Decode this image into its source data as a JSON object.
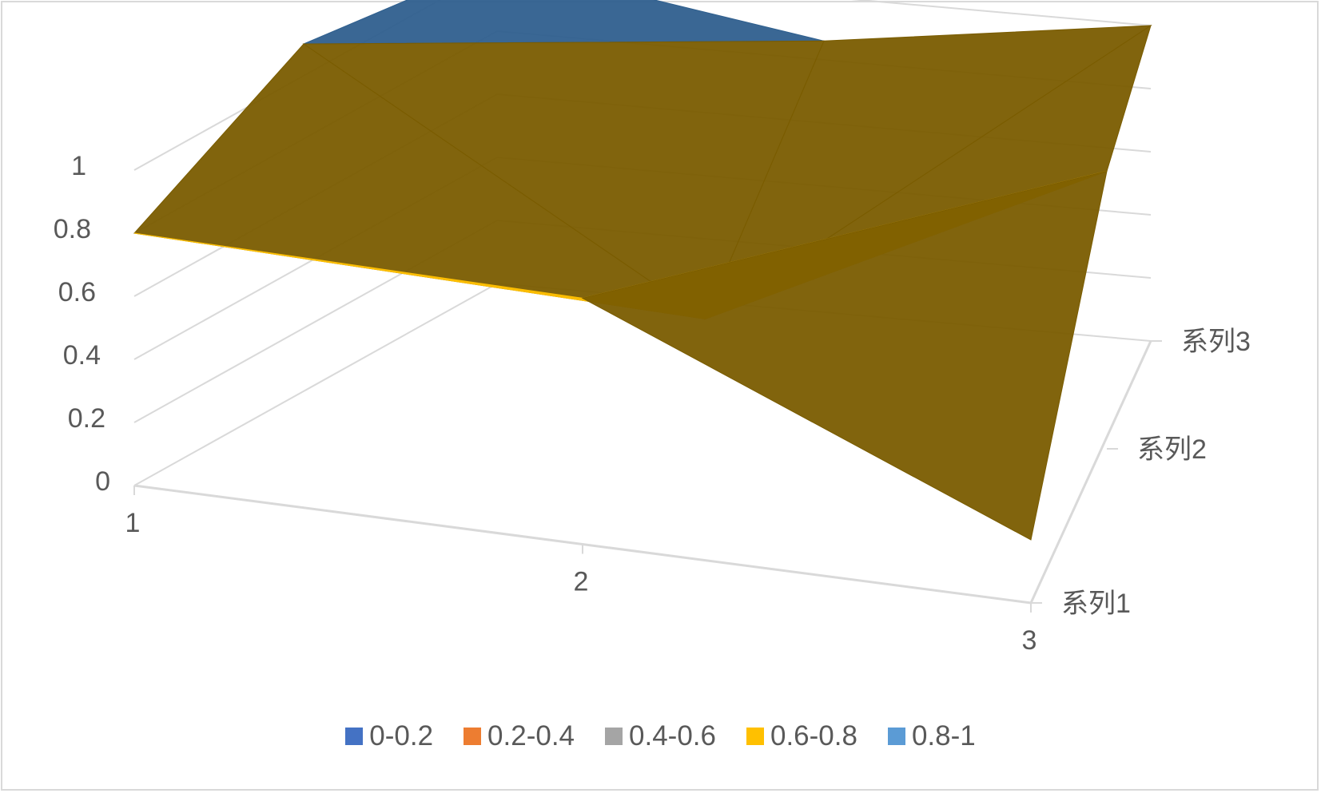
{
  "chart_data": {
    "type": "surface-3d",
    "title": "",
    "categories": [
      "1",
      "2",
      "3"
    ],
    "series_names": [
      "系列1",
      "系列2",
      "系列3"
    ],
    "z_axis": {
      "min": 0,
      "max": 1,
      "step": 0.2,
      "tick_labels": [
        "0",
        "0.2",
        "0.4",
        "0.6",
        "0.8",
        "1"
      ]
    },
    "series": [
      {
        "name": "系列1",
        "values": [
          0.8,
          0.78,
          0.2
        ]
      },
      {
        "name": "系列2",
        "values": [
          1.0,
          0.27,
          0.88
        ]
      },
      {
        "name": "系列3",
        "values": [
          1.02,
          0.86,
          1.0
        ]
      }
    ],
    "legend": {
      "position": "bottom",
      "items": [
        {
          "label": "0-0.2",
          "color": "#4472c4"
        },
        {
          "label": "0.2-0.4",
          "color": "#ed7d31"
        },
        {
          "label": "0.4-0.6",
          "color": "#a5a5a5"
        },
        {
          "label": "0.6-0.8",
          "color": "#ffc000"
        },
        {
          "label": "0.8-1",
          "color": "#5b9bd5"
        }
      ]
    }
  }
}
